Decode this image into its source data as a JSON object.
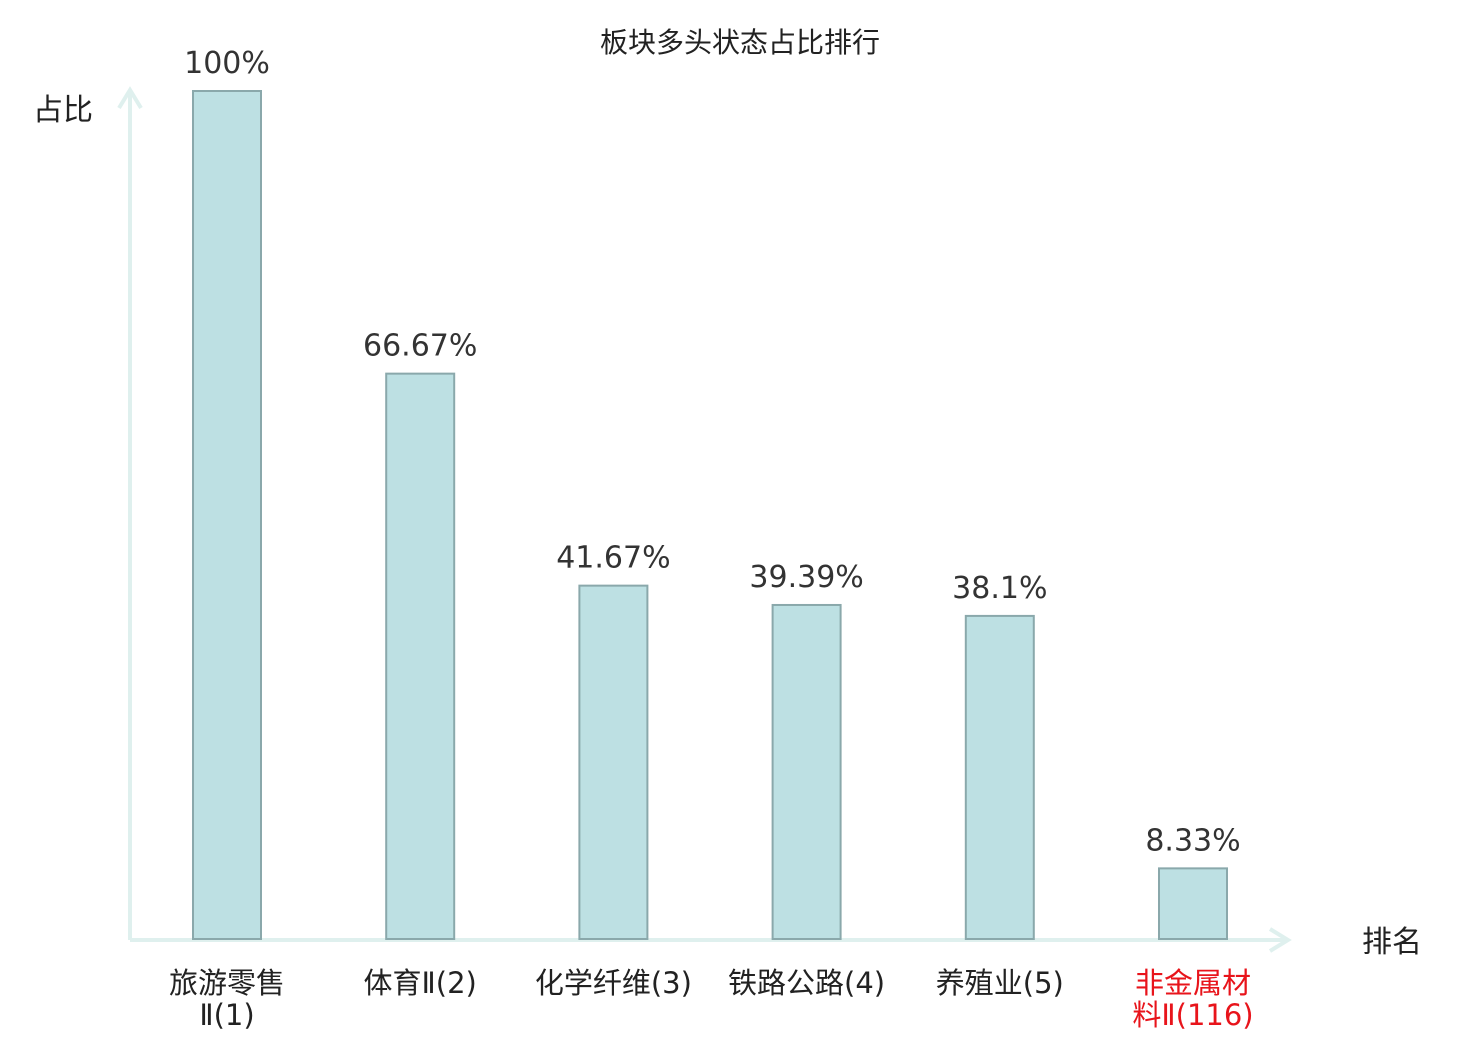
{
  "chart_data": {
    "type": "bar",
    "title": "板块多头状态占比排行",
    "ylabel": "占比",
    "xlabel": "排名",
    "ylim": [
      0,
      100
    ],
    "grid": false,
    "categories": [
      [
        "旅游零售",
        "Ⅱ(1)"
      ],
      [
        "体育Ⅱ(2)"
      ],
      [
        "化学纤维(3)"
      ],
      [
        "铁路公路(4)"
      ],
      [
        "养殖业(5)"
      ],
      [
        "非金属材",
        "料Ⅱ(116)"
      ]
    ],
    "values": [
      100,
      66.67,
      41.67,
      39.39,
      38.1,
      8.33
    ],
    "value_labels": [
      "100%",
      "66.67%",
      "41.67%",
      "39.39%",
      "38.1%",
      "8.33%"
    ],
    "highlighted_category_index": 5,
    "colors": {
      "bar_fill": "#bde0e3",
      "bar_stroke": "#8aa8ab",
      "axis": "#dff0ee",
      "text": "#222222",
      "value_text": "#333333",
      "highlight_text": "#e8141b"
    }
  }
}
